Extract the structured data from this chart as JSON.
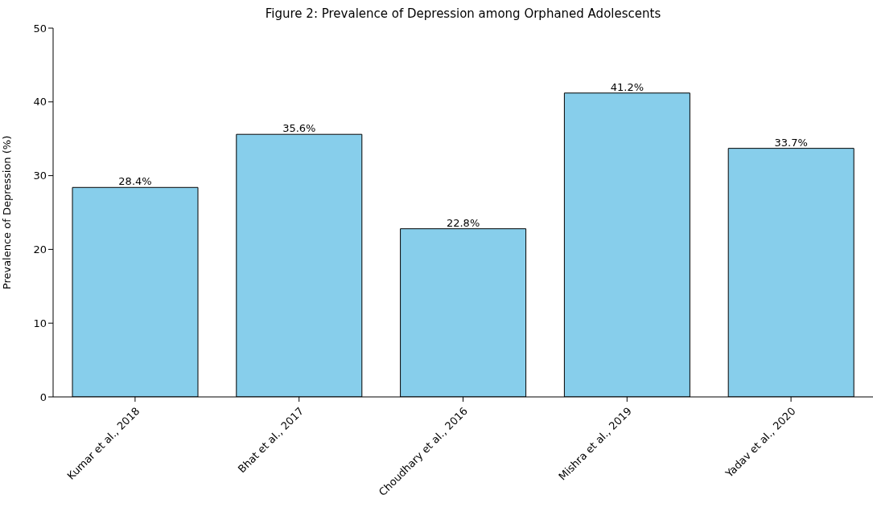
{
  "chart_data": {
    "type": "bar",
    "title": "Figure 2: Prevalence of Depression among Orphaned Adolescents",
    "ylabel": "Prevalence of Depression (%)",
    "categories": [
      "Kumar et al., 2018",
      "Bhat et al., 2017",
      "Choudhary et al., 2016",
      "Mishra et al., 2019",
      "Yadav et al., 2020"
    ],
    "values": [
      28.4,
      35.6,
      22.8,
      41.2,
      33.7
    ],
    "value_labels": [
      "28.4%",
      "35.6%",
      "22.8%",
      "41.2%",
      "33.7%"
    ],
    "color": "#87ceeb",
    "ylim": [
      0,
      50
    ],
    "yticks": [
      0,
      10,
      20,
      30,
      40,
      50
    ],
    "grid": false,
    "legend": false
  }
}
